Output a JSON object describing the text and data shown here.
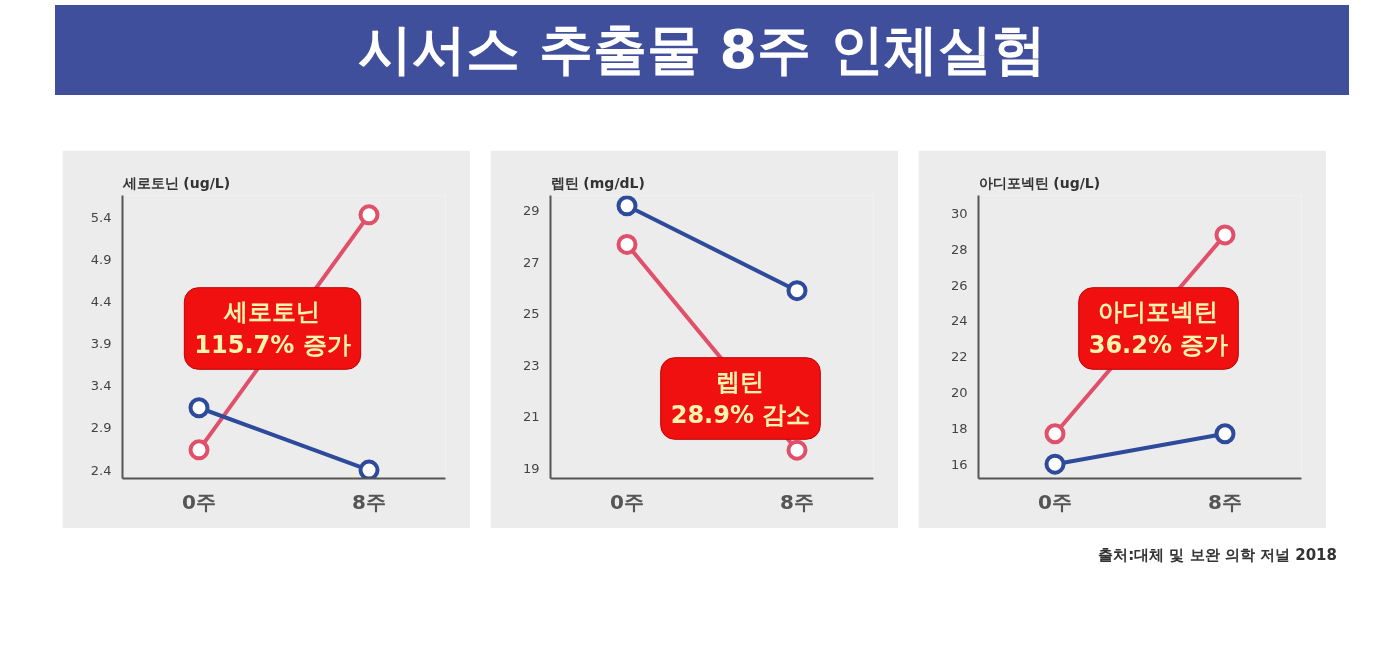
{
  "chart_data": [
    {
      "type": "line",
      "title": "시서스 추출물 8주 인체실험",
      "ylabel": "세로토닌 (ug/L)",
      "categories": [
        "0주",
        "8주"
      ],
      "ylim": [
        2.3,
        5.66
      ],
      "yticks": [
        2.4,
        2.9,
        3.4,
        3.9,
        4.4,
        4.9,
        5.4
      ],
      "marker": "circle",
      "grid": false,
      "series": [
        {
          "color": "#e0506a",
          "values": [
            2.64,
            5.43
          ]
        },
        {
          "color": "#2e4a9a",
          "values": [
            3.14,
            2.4
          ]
        }
      ],
      "annotations": [
        "세로토닌\n115.7% 증가"
      ]
    },
    {
      "type": "line",
      "ylabel": "렙틴 (mg/dL)",
      "categories": [
        "0주",
        "8주"
      ],
      "ylim": [
        18.6,
        29.6
      ],
      "yticks": [
        19,
        21,
        23,
        25,
        27,
        29
      ],
      "marker": "circle",
      "grid": false,
      "series": [
        {
          "color": "#2e4a9a",
          "values": [
            29.2,
            25.9
          ]
        },
        {
          "color": "#e0506a",
          "values": [
            27.7,
            19.7
          ]
        }
      ],
      "annotations": [
        "렙틴\n28.9% 감소"
      ]
    },
    {
      "type": "line",
      "ylabel": "아디포넥틴 (ug/L)",
      "categories": [
        "0주",
        "8주"
      ],
      "ylim": [
        15.2,
        31
      ],
      "yticks": [
        16,
        18,
        20,
        22,
        24,
        26,
        28,
        30
      ],
      "marker": "circle",
      "grid": false,
      "series": [
        {
          "color": "#e0506a",
          "values": [
            17.7,
            28.8
          ]
        },
        {
          "color": "#2e4a9a",
          "values": [
            16.0,
            17.7
          ]
        }
      ],
      "annotations": [
        "아디포넥틴\n36.2% 증가",
        "출처:대체 및 보완 의학 저널 2018"
      ]
    }
  ]
}
